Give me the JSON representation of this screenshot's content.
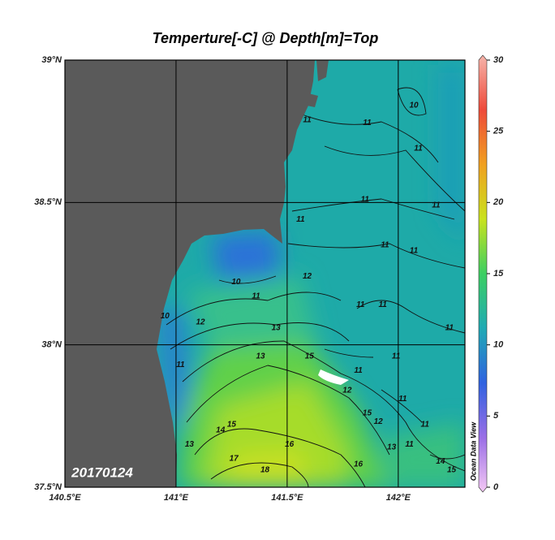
{
  "title": "Temperture[-C] @ Depth[m]=Top",
  "map": {
    "xlim": [
      140.5,
      142.3
    ],
    "ylim": [
      37.5,
      39
    ],
    "xticks": [
      {
        "value": 140.5,
        "label": "140.5°E"
      },
      {
        "value": 141,
        "label": "141°E"
      },
      {
        "value": 141.5,
        "label": "141.5°E"
      },
      {
        "value": 142,
        "label": "142°E"
      }
    ],
    "yticks": [
      {
        "value": 37.5,
        "label": "37.5°N"
      },
      {
        "value": 38,
        "label": "38°N"
      },
      {
        "value": 38.5,
        "label": "38.5°N"
      },
      {
        "value": 39,
        "label": "39°N"
      }
    ],
    "grid": true
  },
  "colorbar": {
    "lim": [
      0,
      30
    ],
    "ticks": [
      0,
      5,
      10,
      15,
      20,
      25,
      30
    ],
    "colors": [
      "#f4c8f4",
      "#9a6ee6",
      "#2f62e0",
      "#1faab4",
      "#3ccf62",
      "#c9e21e",
      "#f0a020",
      "#ee4a3a",
      "#f6b4aa"
    ]
  },
  "date_label": "20170124",
  "watermark": "Ocean Data View",
  "contour_labels": [
    {
      "value": 10,
      "lon": 142.07,
      "lat": 38.84
    },
    {
      "value": 11,
      "lon": 141.59,
      "lat": 38.79
    },
    {
      "value": 11,
      "lon": 141.86,
      "lat": 38.78
    },
    {
      "value": 11,
      "lon": 142.09,
      "lat": 38.69
    },
    {
      "value": 11,
      "lon": 141.85,
      "lat": 38.51
    },
    {
      "value": 11,
      "lon": 142.17,
      "lat": 38.49
    },
    {
      "value": 11,
      "lon": 141.56,
      "lat": 38.44
    },
    {
      "value": 11,
      "lon": 141.94,
      "lat": 38.35
    },
    {
      "value": 11,
      "lon": 142.07,
      "lat": 38.33
    },
    {
      "value": 12,
      "lon": 141.59,
      "lat": 38.24
    },
    {
      "value": 10,
      "lon": 141.27,
      "lat": 38.22
    },
    {
      "value": 11,
      "lon": 141.36,
      "lat": 38.17
    },
    {
      "value": 11,
      "lon": 141.93,
      "lat": 38.14
    },
    {
      "value": 11,
      "lon": 141.83,
      "lat": 38.14
    },
    {
      "value": 10,
      "lon": 140.95,
      "lat": 38.1
    },
    {
      "value": 12,
      "lon": 141.11,
      "lat": 38.08
    },
    {
      "value": 13,
      "lon": 141.45,
      "lat": 38.06
    },
    {
      "value": 11,
      "lon": 142.23,
      "lat": 38.06
    },
    {
      "value": 11,
      "lon": 141.02,
      "lat": 37.93
    },
    {
      "value": 13,
      "lon": 141.38,
      "lat": 37.96
    },
    {
      "value": 11,
      "lon": 141.99,
      "lat": 37.96
    },
    {
      "value": 15,
      "lon": 141.6,
      "lat": 37.96
    },
    {
      "value": 11,
      "lon": 141.82,
      "lat": 37.91
    },
    {
      "value": 12,
      "lon": 141.77,
      "lat": 37.84
    },
    {
      "value": 11,
      "lon": 142.02,
      "lat": 37.81
    },
    {
      "value": 15,
      "lon": 141.86,
      "lat": 37.76
    },
    {
      "value": 12,
      "lon": 141.91,
      "lat": 37.73
    },
    {
      "value": 11,
      "lon": 142.12,
      "lat": 37.72
    },
    {
      "value": 14,
      "lon": 141.2,
      "lat": 37.7
    },
    {
      "value": 15,
      "lon": 141.25,
      "lat": 37.72
    },
    {
      "value": 13,
      "lon": 141.06,
      "lat": 37.65
    },
    {
      "value": 16,
      "lon": 141.51,
      "lat": 37.65
    },
    {
      "value": 13,
      "lon": 141.97,
      "lat": 37.64
    },
    {
      "value": 11,
      "lon": 142.05,
      "lat": 37.65
    },
    {
      "value": 17,
      "lon": 141.26,
      "lat": 37.6
    },
    {
      "value": 18,
      "lon": 141.4,
      "lat": 37.56
    },
    {
      "value": 16,
      "lon": 141.82,
      "lat": 37.58
    },
    {
      "value": 14,
      "lon": 142.19,
      "lat": 37.59
    },
    {
      "value": 15,
      "lon": 142.24,
      "lat": 37.56
    }
  ]
}
